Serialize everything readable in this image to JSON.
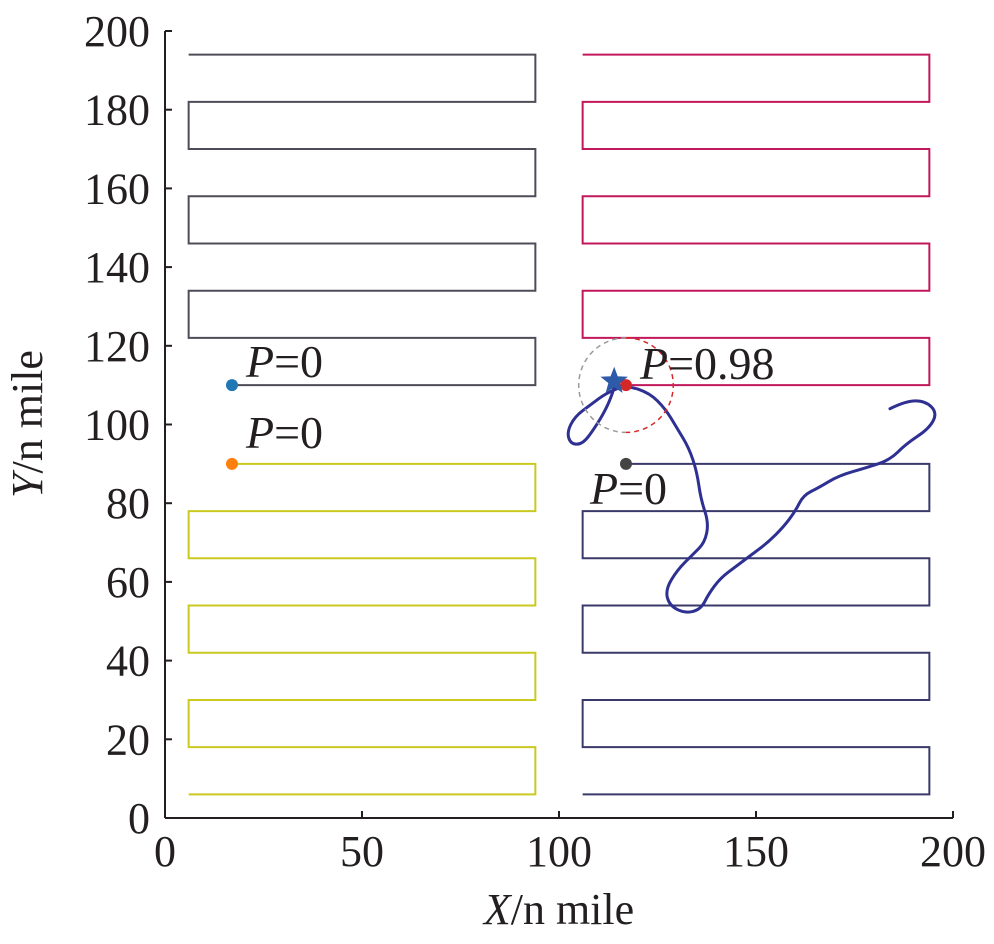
{
  "chart_data": {
    "type": "line",
    "xlabel": {
      "italic": "X",
      "rest": "/n mile"
    },
    "ylabel": {
      "italic": "Y",
      "rest": "/n mile"
    },
    "xlim": [
      0,
      200
    ],
    "ylim": [
      0,
      200
    ],
    "xticks": [
      0,
      50,
      100,
      150,
      200
    ],
    "yticks": [
      0,
      20,
      40,
      60,
      80,
      100,
      120,
      140,
      160,
      180,
      200
    ],
    "grid": false,
    "legend": "none",
    "search_paths": [
      {
        "color": "#4d4d57",
        "points": [
          [
            6,
            194
          ],
          [
            94,
            194
          ],
          [
            94,
            182
          ],
          [
            6,
            182
          ],
          [
            6,
            170
          ],
          [
            94,
            170
          ],
          [
            94,
            158
          ],
          [
            6,
            158
          ],
          [
            6,
            146
          ],
          [
            94,
            146
          ],
          [
            94,
            134
          ],
          [
            6,
            134
          ],
          [
            6,
            122
          ],
          [
            94,
            122
          ],
          [
            94,
            110
          ],
          [
            17,
            110
          ]
        ]
      },
      {
        "color": "#c9c920",
        "points": [
          [
            17,
            90
          ],
          [
            94,
            90
          ],
          [
            94,
            78
          ],
          [
            6,
            78
          ],
          [
            6,
            66
          ],
          [
            94,
            66
          ],
          [
            94,
            54
          ],
          [
            6,
            54
          ],
          [
            6,
            42
          ],
          [
            94,
            42
          ],
          [
            94,
            30
          ],
          [
            6,
            30
          ],
          [
            6,
            18
          ],
          [
            94,
            18
          ],
          [
            94,
            6
          ],
          [
            6,
            6
          ]
        ]
      },
      {
        "color": "#c2185b",
        "points": [
          [
            106,
            194
          ],
          [
            194,
            194
          ],
          [
            194,
            182
          ],
          [
            106,
            182
          ],
          [
            106,
            170
          ],
          [
            194,
            170
          ],
          [
            194,
            158
          ],
          [
            106,
            158
          ],
          [
            106,
            146
          ],
          [
            194,
            146
          ],
          [
            194,
            134
          ],
          [
            106,
            134
          ],
          [
            106,
            122
          ],
          [
            194,
            122
          ],
          [
            194,
            110
          ],
          [
            117,
            110
          ]
        ]
      },
      {
        "color": "#3a3a6a",
        "points": [
          [
            117,
            90
          ],
          [
            194,
            90
          ],
          [
            194,
            78
          ],
          [
            106,
            78
          ],
          [
            106,
            66
          ],
          [
            194,
            66
          ],
          [
            194,
            54
          ],
          [
            106,
            54
          ],
          [
            106,
            42
          ],
          [
            194,
            42
          ],
          [
            194,
            30
          ],
          [
            106,
            30
          ],
          [
            106,
            18
          ],
          [
            194,
            18
          ],
          [
            194,
            6
          ],
          [
            106,
            6
          ]
        ]
      }
    ],
    "search_starts": [
      {
        "x": 17,
        "y": 110,
        "color": "#1f77b4",
        "label_italic": "P",
        "label_rest": "=0"
      },
      {
        "x": 17,
        "y": 90,
        "color": "#ff7f0e",
        "label_italic": "P",
        "label_rest": "=0"
      },
      {
        "x": 117,
        "y": 110,
        "color": "#d62728",
        "label_italic": "P",
        "label_rest": "=0.98"
      },
      {
        "x": 117,
        "y": 90,
        "color": "#444444",
        "label_italic": "P",
        "label_rest": "=0"
      }
    ],
    "target_track": {
      "color": "#2e3192",
      "points": [
        [
          184,
          104
        ],
        [
          188,
          106
        ],
        [
          193,
          106
        ],
        [
          196,
          103
        ],
        [
          194,
          99
        ],
        [
          188,
          95
        ],
        [
          184,
          91
        ],
        [
          178,
          89
        ],
        [
          171,
          87
        ],
        [
          166,
          84
        ],
        [
          162,
          82
        ],
        [
          160,
          78
        ],
        [
          157,
          74
        ],
        [
          153,
          70
        ],
        [
          149,
          67
        ],
        [
          145,
          64
        ],
        [
          141,
          61
        ],
        [
          138,
          57
        ],
        [
          136,
          53
        ],
        [
          132,
          52
        ],
        [
          128,
          54
        ],
        [
          127,
          58
        ],
        [
          130,
          63
        ],
        [
          134,
          67
        ],
        [
          137,
          70
        ],
        [
          138,
          75
        ],
        [
          136,
          81
        ],
        [
          135,
          88
        ],
        [
          133,
          94
        ],
        [
          130,
          99
        ],
        [
          127,
          104
        ],
        [
          123,
          108
        ],
        [
          117,
          110
        ],
        [
          112,
          108
        ],
        [
          108,
          105
        ],
        [
          104,
          102
        ],
        [
          102,
          98
        ],
        [
          103,
          95
        ],
        [
          106,
          95
        ],
        [
          109,
          99
        ],
        [
          112,
          104
        ],
        [
          114,
          109
        ],
        [
          114,
          111
        ]
      ]
    },
    "target_marker": {
      "x": 114,
      "y": 111,
      "color": "#2e5aa8",
      "shape": "star"
    },
    "detection_circle": {
      "cx": 117,
      "cy": 110,
      "r": 12,
      "color_left": "#9a9a9a",
      "color_right": "#d62728"
    }
  }
}
